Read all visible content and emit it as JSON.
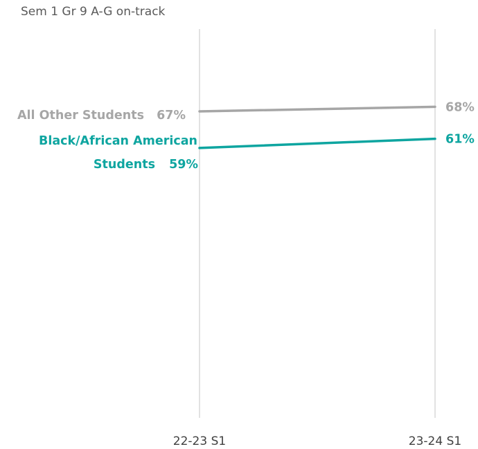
{
  "chart_data": {
    "type": "line",
    "title": "Sem 1 Gr 9 A-G on-track",
    "xlabel": "",
    "ylabel": "",
    "categories": [
      "22-23 S1",
      "23-24 S1"
    ],
    "ylim": [
      0,
      85
    ],
    "grid": false,
    "legend": "none",
    "series": [
      {
        "name": "All Other Students",
        "values": [
          67,
          68
        ],
        "value_labels": [
          "67%",
          "68%"
        ],
        "color": "#A6A6A6"
      },
      {
        "name": "Black/African American Students",
        "name_lines": [
          "Black/African American",
          "Students"
        ],
        "values": [
          59,
          61
        ],
        "value_labels": [
          "59%",
          "61%"
        ],
        "color": "#0EA5A0"
      }
    ]
  }
}
